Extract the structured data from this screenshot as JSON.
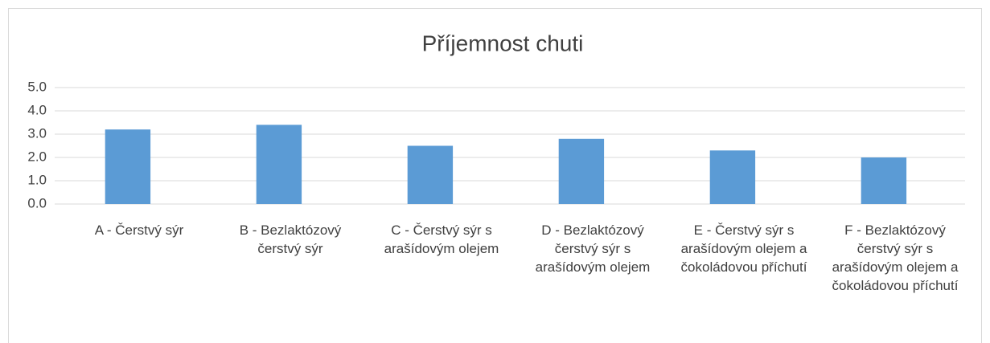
{
  "chart_data": {
    "type": "bar",
    "title": "Příjemnost chuti",
    "categories": [
      "A - Čerstvý sýr",
      "B - Bezlaktózový čerstvý sýr",
      "C - Čerstvý sýr s arašídovým olejem",
      "D - Bezlaktózový čerstvý sýr s arašídovým olejem",
      "E - Čerstvý sýr s arašídovým olejem a čokoládovou příchutí",
      "F - Bezlaktózový čerstvý sýr s arašídovým olejem a čokoládovou příchutí"
    ],
    "values": [
      3.2,
      3.4,
      2.5,
      2.8,
      2.3,
      2.0
    ],
    "color": "#5b9bd5",
    "ylim": [
      0,
      5
    ],
    "yticks": [
      {
        "value": 0,
        "label": "0.0"
      },
      {
        "value": 1,
        "label": "1.0"
      },
      {
        "value": 2,
        "label": "2.0"
      },
      {
        "value": 3,
        "label": "3.0"
      },
      {
        "value": 4,
        "label": "4.0"
      },
      {
        "value": 5,
        "label": "5.0"
      }
    ],
    "grid": true
  }
}
